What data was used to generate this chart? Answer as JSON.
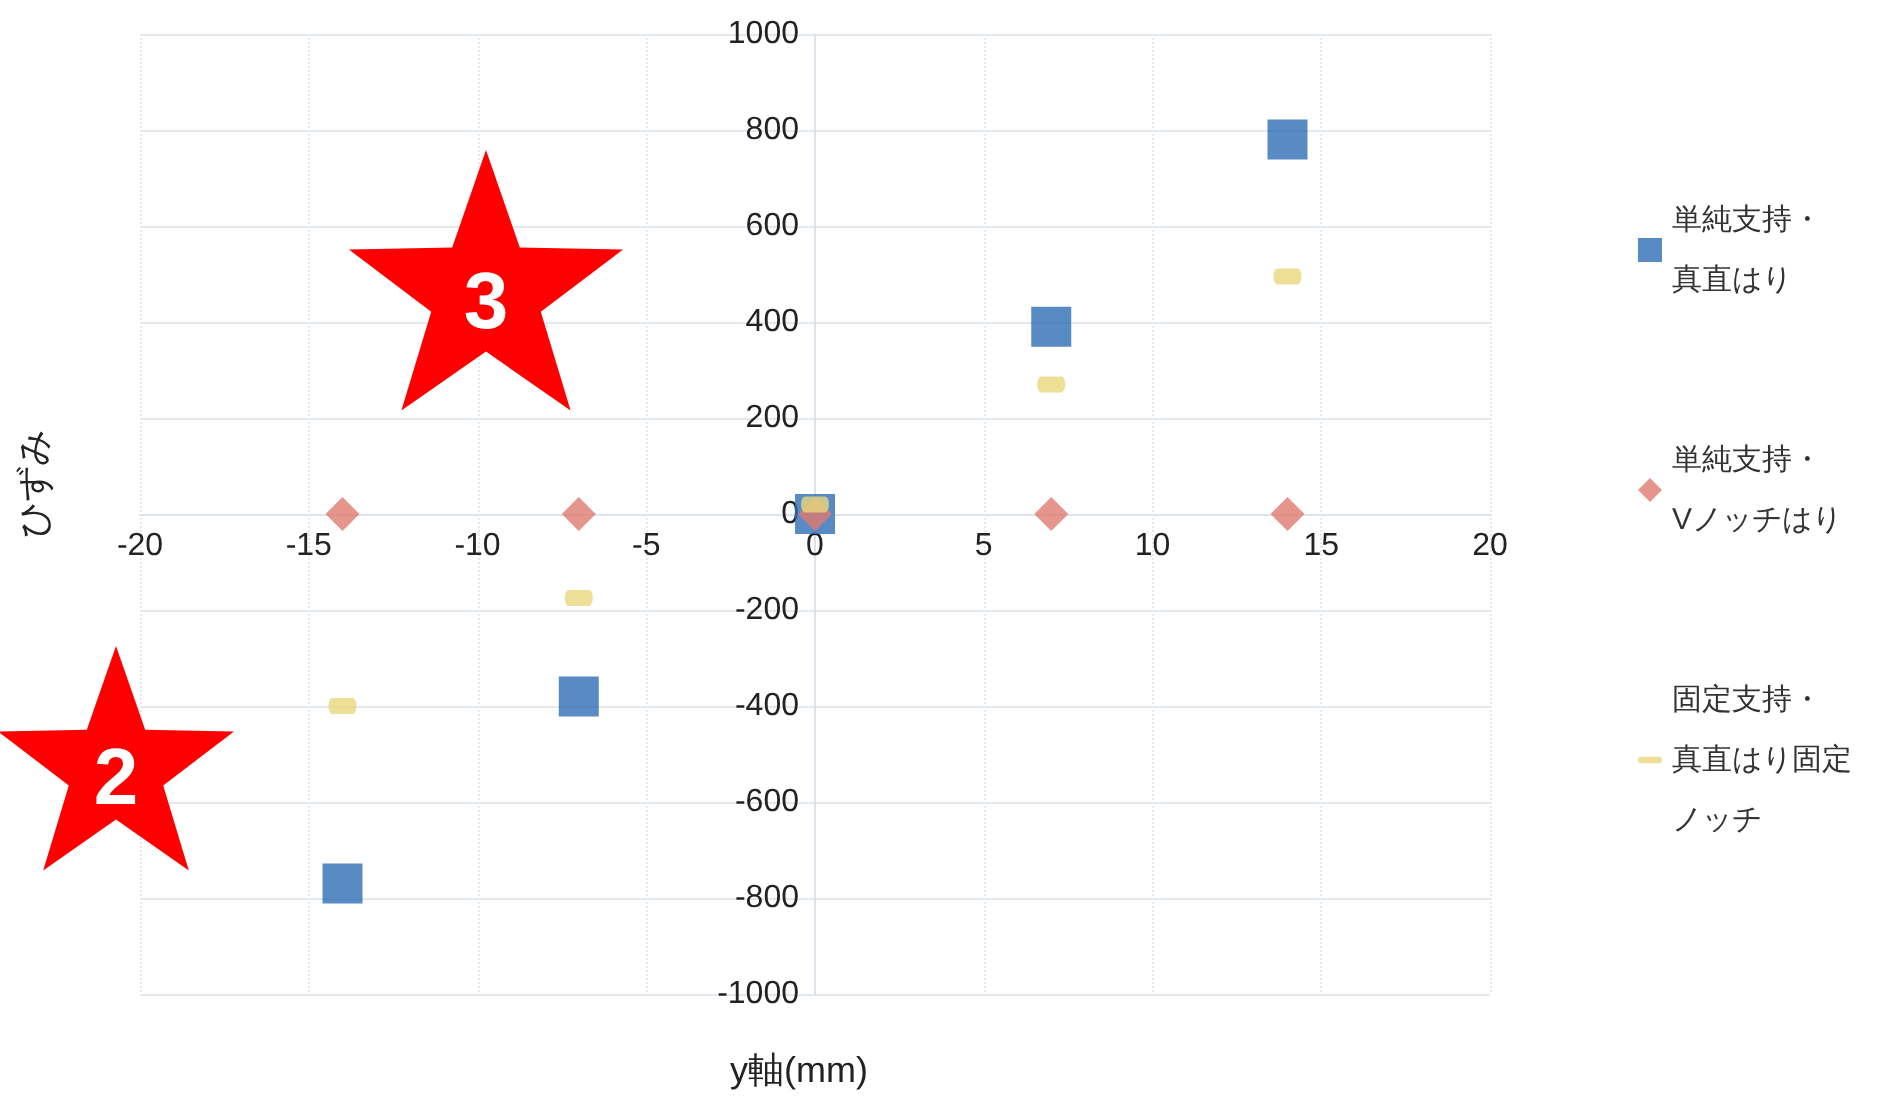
{
  "chart_data": {
    "type": "scatter",
    "xlabel": "y軸(mm)",
    "ylabel": "ひずみ",
    "xlim": [
      -20,
      20
    ],
    "xticks": [
      -20,
      -15,
      -10,
      -5,
      0,
      5,
      10,
      15,
      20
    ],
    "ylim": [
      -1000,
      1000
    ],
    "yticks": [
      -1000,
      -800,
      -600,
      -400,
      -200,
      0,
      200,
      400,
      600,
      800,
      1000
    ],
    "grid": true,
    "legend": "right",
    "annotations": [
      "3",
      "2"
    ],
    "series": [
      {
        "name": "単純支持・真直はり",
        "color": "#2e6db4",
        "marker": "square",
        "x": [
          -14,
          -7,
          0,
          7,
          14
        ],
        "values": [
          -770,
          -380,
          0,
          390,
          780
        ]
      },
      {
        "name": "単純支持・Vノッチはり",
        "color": "#e07a70",
        "marker": "diamond",
        "x": [
          -14,
          -7,
          0,
          7,
          14
        ],
        "values": [
          0,
          0,
          0,
          0,
          0
        ]
      },
      {
        "name": "固定支持・真直はり固定ノッチ",
        "color": "#e8d77a",
        "x": [
          -14,
          -7,
          0,
          7,
          14
        ],
        "values": [
          -400,
          -175,
          20,
          270,
          495
        ]
      }
    ]
  }
}
